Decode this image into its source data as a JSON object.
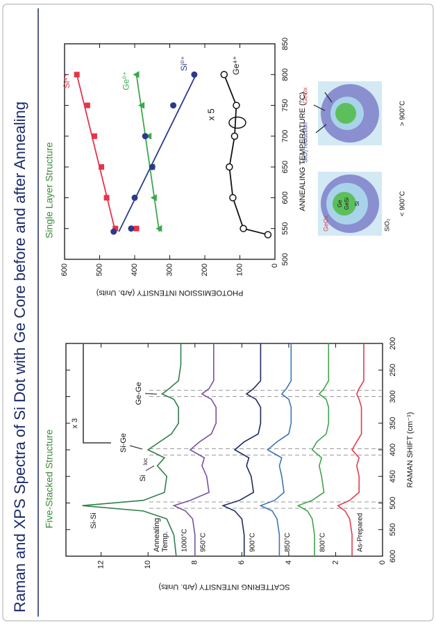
{
  "header": {
    "title": "Raman and XPS Spectra of Si Dot with Ge Core before and after Annealing"
  },
  "chart_data": [
    {
      "type": "line",
      "subtitle": "Five-Stacked Structure",
      "x_label": "RAMAN SHIFT (cm⁻¹)",
      "y_label": "SCATTERING INTENSITY (Arb. Units)",
      "x": [
        600,
        560,
        530,
        515,
        505,
        495,
        480,
        450,
        430,
        415,
        400,
        385,
        370,
        350,
        320,
        305,
        295,
        285,
        270,
        240,
        200
      ],
      "series": [
        {
          "name": "1000°C",
          "color": "#2e7d4a",
          "values": [
            8.8,
            8.9,
            9.2,
            10.2,
            12.8,
            10.2,
            9.3,
            9.2,
            9.6,
            9.3,
            10.0,
            9.5,
            9.0,
            8.7,
            8.7,
            8.9,
            9.4,
            9.1,
            8.7,
            8.6,
            8.6
          ]
        },
        {
          "name": "950°C",
          "color": "#7b4fa0",
          "values": [
            8.0,
            8.0,
            8.1,
            8.4,
            8.9,
            8.2,
            7.4,
            7.5,
            7.7,
            7.6,
            8.2,
            7.8,
            7.3,
            7.1,
            7.1,
            7.3,
            7.7,
            7.4,
            7.2,
            7.2,
            7.2
          ]
        },
        {
          "name": "900°C",
          "color": "#1c2860",
          "values": [
            5.9,
            5.9,
            6.0,
            6.3,
            6.8,
            6.1,
            5.5,
            5.6,
            5.8,
            5.7,
            6.3,
            5.9,
            5.3,
            5.2,
            5.2,
            5.4,
            5.8,
            5.5,
            5.2,
            5.2,
            5.2
          ]
        },
        {
          "name": "850°C",
          "color": "#3b74b8",
          "values": [
            4.4,
            4.4,
            4.5,
            4.7,
            5.2,
            4.6,
            4.2,
            4.3,
            4.4,
            4.3,
            4.9,
            4.5,
            4.0,
            3.9,
            3.9,
            4.0,
            4.3,
            4.1,
            3.9,
            3.9,
            3.9
          ]
        },
        {
          "name": "800°C",
          "color": "#3fa34a",
          "values": [
            2.9,
            2.9,
            3.0,
            3.2,
            3.6,
            3.0,
            2.5,
            2.6,
            2.7,
            2.6,
            3.0,
            2.8,
            2.4,
            2.3,
            2.3,
            2.4,
            2.7,
            2.5,
            2.3,
            2.3,
            2.3
          ]
        },
        {
          "name": "As-Prepared",
          "color": "#e23a4a",
          "values": [
            1.3,
            1.3,
            1.4,
            1.6,
            1.9,
            1.4,
            1.0,
            1.0,
            1.1,
            1.0,
            1.3,
            1.1,
            0.9,
            0.9,
            0.9,
            1.0,
            1.1,
            1.0,
            0.8,
            0.8,
            0.8
          ]
        }
      ],
      "xlim": [
        600,
        200
      ],
      "xticks": [
        600,
        550,
        500,
        450,
        400,
        350,
        300,
        250,
        200
      ],
      "ylim": [
        0,
        13.5
      ],
      "yticks": [
        0,
        2,
        4,
        6,
        8,
        10,
        12
      ],
      "peak_lines": [
        510,
        498,
        410,
        398,
        300,
        288
      ],
      "annotations": {
        "annealing": "Annealing",
        "temp": "Temp.",
        "si_si": "Si-Si",
        "si_ge": "Si-Ge",
        "si": "Si",
        "loc": "loc",
        "ge_ge": "Ge-Ge",
        "scale": "x 3"
      }
    },
    {
      "type": "scatter",
      "subtitle": "Single Layer Structure",
      "x_label": "ANNEALING TEMPERATURE (°C)",
      "y_label": "PHOTOEMISSION INTENSITY (Arb. Units)",
      "series": [
        {
          "name": "Si⁴⁺",
          "color": "#e8334a",
          "marker": "square",
          "x": [
            550,
            550,
            600,
            650,
            700,
            750,
            800
          ],
          "values": [
            395,
            455,
            480,
            495,
            515,
            535,
            565
          ],
          "fit": {
            "x": [
              545,
              800
            ],
            "values": [
              455,
              565
            ]
          }
        },
        {
          "name": "Ge⁰⁺",
          "color": "#3aa84a",
          "marker": "triangle",
          "x": [
            550,
            600,
            650,
            700,
            750,
            800
          ],
          "values": [
            330,
            345,
            350,
            360,
            380,
            395
          ],
          "fit": {
            "x": [
              545,
              800
            ],
            "values": [
              330,
              395
            ]
          }
        },
        {
          "name": "Si⁰⁺",
          "color": "#2c3a8c",
          "marker": "circle",
          "x": [
            545,
            550,
            600,
            650,
            700,
            750,
            800
          ],
          "values": [
            460,
            410,
            400,
            350,
            370,
            290,
            230
          ],
          "fit": {
            "x": [
              545,
              800
            ],
            "values": [
              445,
              225
            ]
          }
        },
        {
          "name": "Ge⁴⁺",
          "color": "#111111",
          "marker": "open-circle",
          "connect": true,
          "x": [
            540,
            550,
            600,
            650,
            700,
            750,
            800
          ],
          "values": [
            20,
            90,
            120,
            130,
            115,
            110,
            145
          ]
        }
      ],
      "xlim": [
        500,
        850
      ],
      "xticks": [
        500,
        550,
        600,
        650,
        700,
        750,
        800,
        850
      ],
      "ylim": [
        0,
        600
      ],
      "yticks": [
        0,
        100,
        200,
        300,
        400,
        500,
        600
      ],
      "annotations": {
        "scale": "x 5"
      }
    }
  ],
  "diagram": {
    "geox_left": "GeOx",
    "ge": "Ge",
    "gesi": "GeSi",
    "si": "Si",
    "sio2": "SiO₂",
    "reduction": "SiO₂ reduction",
    "geox_right": "GeOx",
    "below": "< 900°C",
    "above": "> 900°C"
  }
}
